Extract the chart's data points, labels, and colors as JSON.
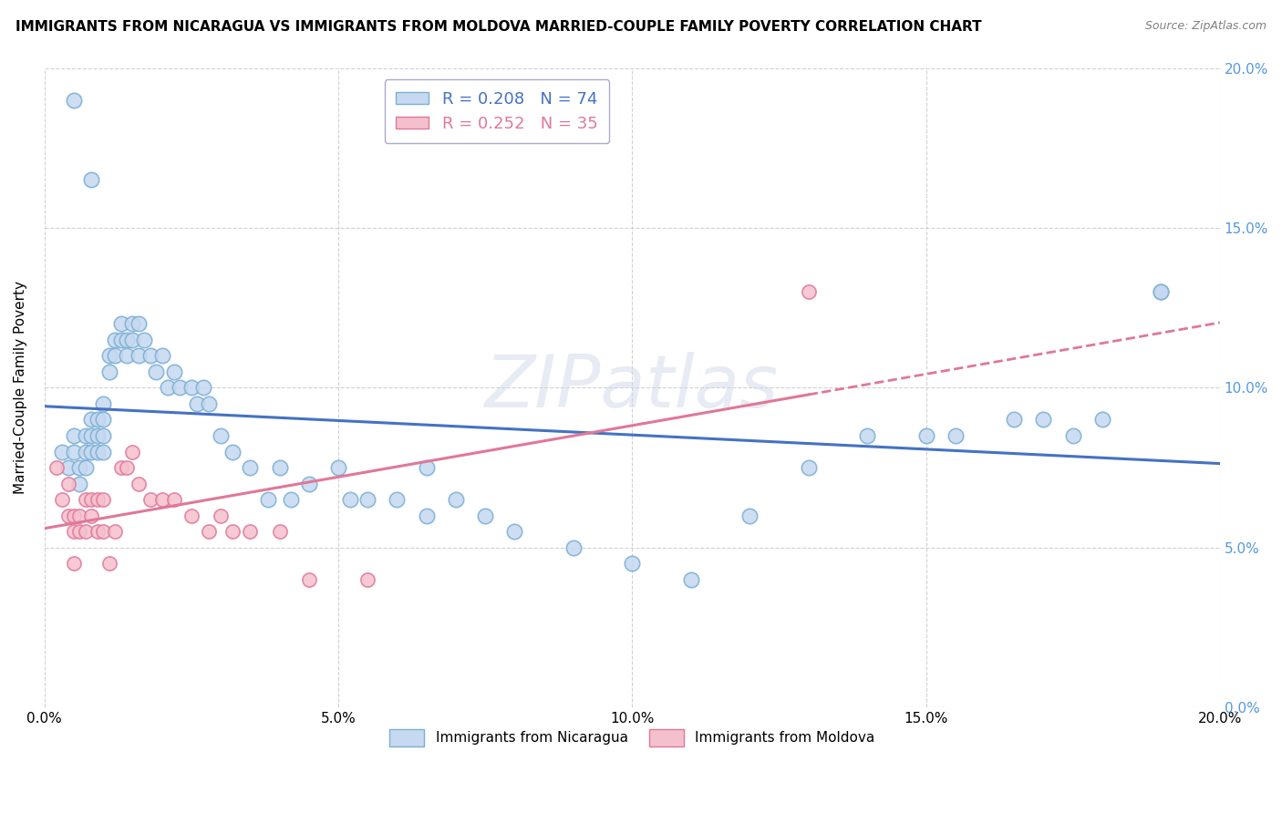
{
  "title": "IMMIGRANTS FROM NICARAGUA VS IMMIGRANTS FROM MOLDOVA MARRIED-COUPLE FAMILY POVERTY CORRELATION CHART",
  "source": "Source: ZipAtlas.com",
  "ylabel": "Married-Couple Family Poverty",
  "ymin": 0.0,
  "ymax": 0.2,
  "xmin": 0.0,
  "xmax": 0.2,
  "nicaragua_R": 0.208,
  "nicaragua_N": 74,
  "moldova_R": 0.252,
  "moldova_N": 35,
  "nicaragua_color": "#c6d9f0",
  "nicaragua_edge": "#7bafd4",
  "moldova_color": "#f5c0ce",
  "moldova_edge": "#e07898",
  "nicaragua_line_color": "#4472c4",
  "moldova_line_color": "#e07898",
  "watermark": "ZIPatlas",
  "ytick_color": "#5599dd",
  "grid_color": "#cccccc",
  "nic_x": [
    0.003,
    0.004,
    0.005,
    0.005,
    0.006,
    0.006,
    0.007,
    0.007,
    0.007,
    0.008,
    0.008,
    0.008,
    0.009,
    0.009,
    0.009,
    0.01,
    0.01,
    0.01,
    0.01,
    0.011,
    0.011,
    0.012,
    0.012,
    0.013,
    0.013,
    0.014,
    0.014,
    0.015,
    0.015,
    0.016,
    0.016,
    0.017,
    0.018,
    0.019,
    0.02,
    0.021,
    0.022,
    0.023,
    0.025,
    0.026,
    0.027,
    0.028,
    0.03,
    0.032,
    0.035,
    0.038,
    0.04,
    0.042,
    0.045,
    0.05,
    0.052,
    0.055,
    0.06,
    0.065,
    0.065,
    0.07,
    0.075,
    0.08,
    0.09,
    0.1,
    0.11,
    0.12,
    0.13,
    0.14,
    0.15,
    0.155,
    0.165,
    0.17,
    0.175,
    0.18,
    0.19,
    0.19,
    0.005,
    0.008
  ],
  "nic_y": [
    0.08,
    0.075,
    0.085,
    0.08,
    0.075,
    0.07,
    0.085,
    0.08,
    0.075,
    0.09,
    0.085,
    0.08,
    0.09,
    0.085,
    0.08,
    0.095,
    0.09,
    0.085,
    0.08,
    0.11,
    0.105,
    0.115,
    0.11,
    0.12,
    0.115,
    0.115,
    0.11,
    0.12,
    0.115,
    0.12,
    0.11,
    0.115,
    0.11,
    0.105,
    0.11,
    0.1,
    0.105,
    0.1,
    0.1,
    0.095,
    0.1,
    0.095,
    0.085,
    0.08,
    0.075,
    0.065,
    0.075,
    0.065,
    0.07,
    0.075,
    0.065,
    0.065,
    0.065,
    0.06,
    0.075,
    0.065,
    0.06,
    0.055,
    0.05,
    0.045,
    0.04,
    0.06,
    0.075,
    0.085,
    0.085,
    0.085,
    0.09,
    0.09,
    0.085,
    0.09,
    0.13,
    0.13,
    0.19,
    0.165
  ],
  "mol_x": [
    0.002,
    0.003,
    0.004,
    0.004,
    0.005,
    0.005,
    0.005,
    0.006,
    0.006,
    0.007,
    0.007,
    0.008,
    0.008,
    0.009,
    0.009,
    0.01,
    0.01,
    0.011,
    0.012,
    0.013,
    0.014,
    0.015,
    0.016,
    0.018,
    0.02,
    0.022,
    0.025,
    0.028,
    0.03,
    0.032,
    0.035,
    0.04,
    0.045,
    0.055,
    0.13
  ],
  "mol_y": [
    0.075,
    0.065,
    0.07,
    0.06,
    0.06,
    0.055,
    0.045,
    0.06,
    0.055,
    0.065,
    0.055,
    0.065,
    0.06,
    0.065,
    0.055,
    0.065,
    0.055,
    0.045,
    0.055,
    0.075,
    0.075,
    0.08,
    0.07,
    0.065,
    0.065,
    0.065,
    0.06,
    0.055,
    0.06,
    0.055,
    0.055,
    0.055,
    0.04,
    0.04,
    0.13
  ]
}
